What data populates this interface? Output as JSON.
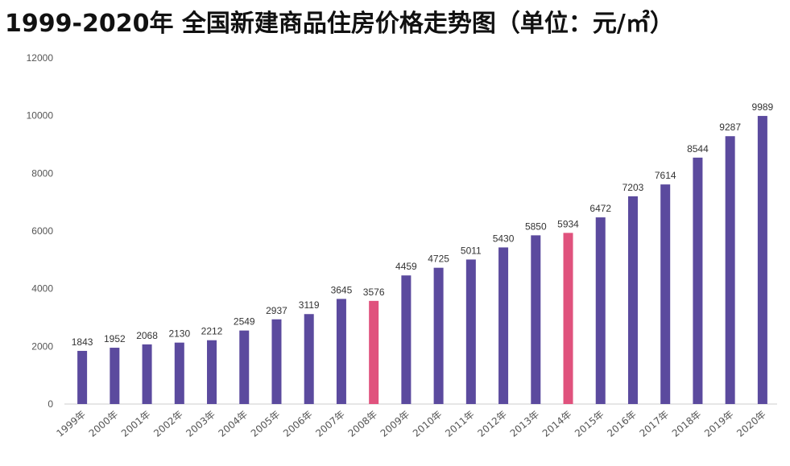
{
  "chart_data": {
    "type": "bar",
    "title": "1999-2020年 全国新建商品住房价格走势图（单位：元/㎡）",
    "categories": [
      "1999年",
      "2000年",
      "2001年",
      "2002年",
      "2003年",
      "2004年",
      "2005年",
      "2006年",
      "2007年",
      "2008年",
      "2009年",
      "2010年",
      "2011年",
      "2012年",
      "2013年",
      "2014年",
      "2015年",
      "2016年",
      "2017年",
      "2018年",
      "2019年",
      "2020年"
    ],
    "values": [
      1843,
      1952,
      2068,
      2130,
      2212,
      2549,
      2937,
      3119,
      3645,
      3576,
      4459,
      4725,
      5011,
      5430,
      5850,
      5934,
      6472,
      7203,
      7614,
      8544,
      9287,
      9989
    ],
    "highlight": [
      "2008年",
      "2014年"
    ],
    "ylim": [
      0,
      12000
    ],
    "yticks": [
      0,
      2000,
      4000,
      6000,
      8000,
      10000,
      12000
    ],
    "grid": false,
    "data_labels": true,
    "colors": {
      "bar": "#5b4a9e",
      "highlight": "#e0527d",
      "axis": "#cccccc"
    }
  }
}
